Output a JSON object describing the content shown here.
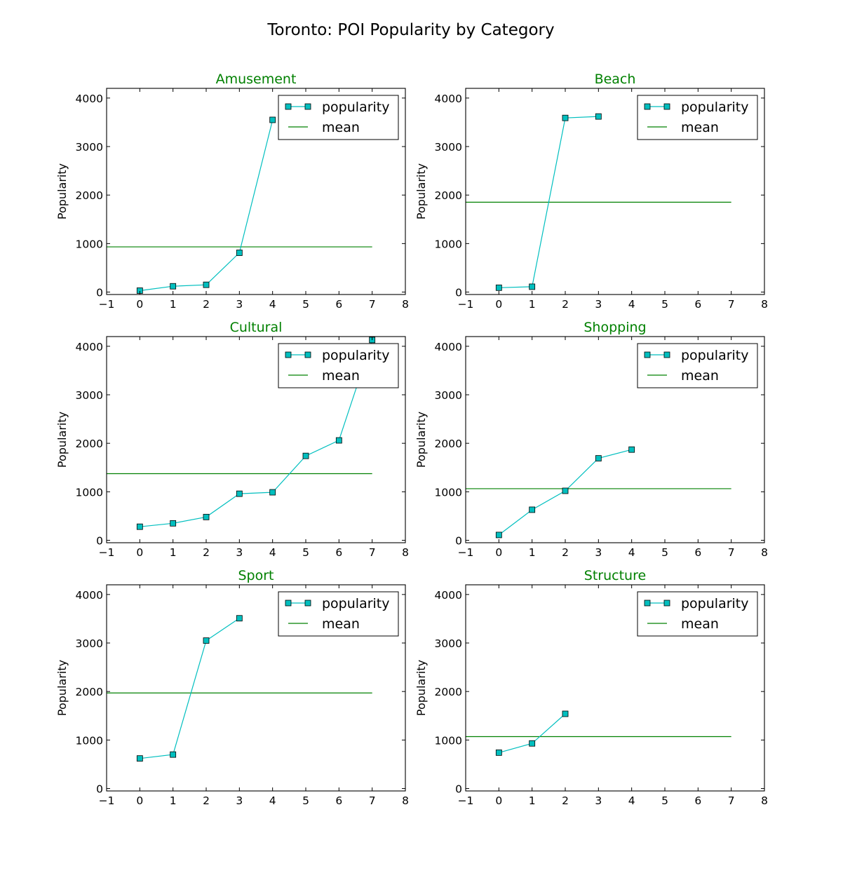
{
  "chart_data": {
    "type": "line",
    "suptitle": "Toronto: POI Popularity by Category",
    "xlim": [
      -1,
      8
    ],
    "ylim": [
      -50,
      4200
    ],
    "xticks": [
      -1,
      0,
      1,
      2,
      3,
      4,
      5,
      6,
      7,
      8
    ],
    "xtick_labels": [
      "−1",
      "0",
      "1",
      "2",
      "3",
      "4",
      "5",
      "6",
      "7",
      "8"
    ],
    "yticks": [
      0,
      1000,
      2000,
      3000,
      4000
    ],
    "ylabel": "Popularity",
    "grid": false,
    "legend": {
      "placement": "upper right",
      "entries": [
        "popularity",
        "mean"
      ]
    },
    "colors": {
      "popularity": "#00bfbf",
      "mean": "#008000",
      "title": "#008000"
    },
    "mean_x_range": [
      -1,
      7
    ],
    "panels": [
      {
        "title": "Amusement",
        "x": [
          0,
          1,
          2,
          3,
          4
        ],
        "popularity": [
          30,
          120,
          150,
          810,
          3550
        ],
        "mean": 932
      },
      {
        "title": "Beach",
        "x": [
          0,
          1,
          2,
          3
        ],
        "popularity": [
          90,
          110,
          3590,
          3620
        ],
        "mean": 1853
      },
      {
        "title": "Cultural",
        "x": [
          0,
          1,
          2,
          3,
          4,
          5,
          6,
          7
        ],
        "popularity": [
          280,
          350,
          480,
          960,
          990,
          1740,
          2060,
          4130
        ],
        "mean": 1374
      },
      {
        "title": "Shopping",
        "x": [
          0,
          1,
          2,
          3,
          4
        ],
        "popularity": [
          110,
          630,
          1020,
          1690,
          1870
        ],
        "mean": 1064
      },
      {
        "title": "Sport",
        "x": [
          0,
          1,
          2,
          3
        ],
        "popularity": [
          620,
          700,
          3050,
          3510
        ],
        "mean": 1970
      },
      {
        "title": "Structure",
        "x": [
          0,
          1,
          2
        ],
        "popularity": [
          740,
          930,
          1540
        ],
        "mean": 1070
      }
    ]
  }
}
